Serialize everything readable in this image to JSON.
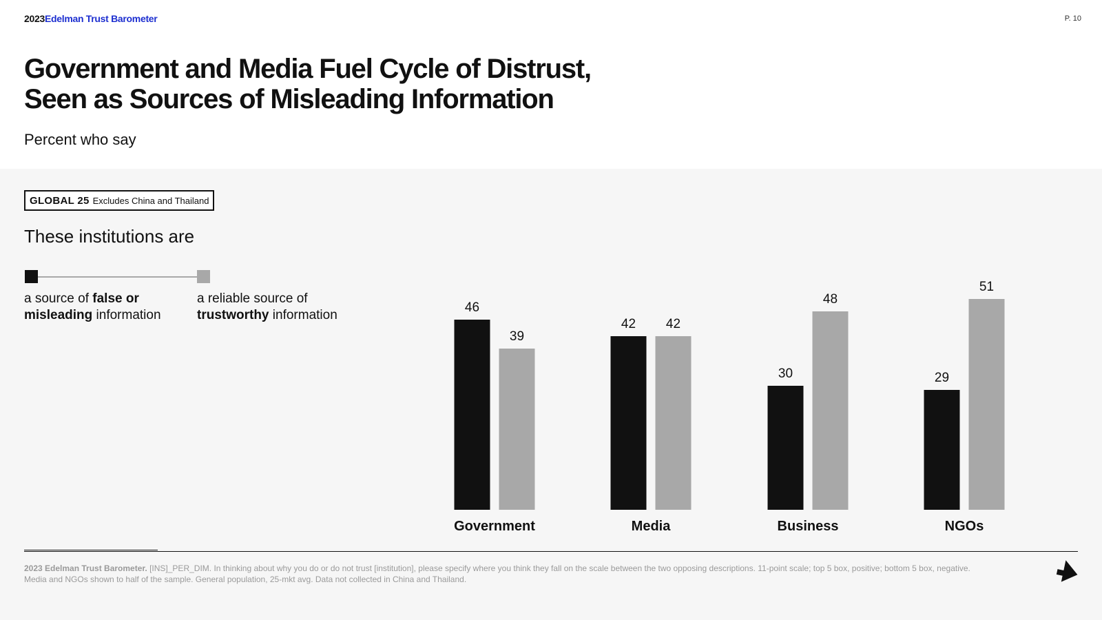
{
  "header": {
    "brand_year": "2023",
    "brand_name": "Edelman Trust Barometer",
    "page_number": "P. 10"
  },
  "title": "Government and Media Fuel Cycle of Distrust,\nSeen as Sources of Misleading Information",
  "subtitle": "Percent who say",
  "badge": {
    "label": "GLOBAL 25",
    "note": "Excludes China and Thailand"
  },
  "institutions_heading": "These institutions are",
  "legend": {
    "left_pre": "a source of ",
    "left_bold": "false or misleading",
    "left_post": " information",
    "right_pre": "a reliable source of ",
    "right_bold": "trustworthy",
    "right_post": " information"
  },
  "colors": {
    "dark_series": "#111111",
    "light_series": "#a8a8a8",
    "brand_blue": "#1d2fd0",
    "panel_background": "#f6f6f6"
  },
  "chart_data": {
    "type": "bar",
    "categories": [
      "Government",
      "Media",
      "Business",
      "NGOs"
    ],
    "series": [
      {
        "values": [
          46,
          42,
          30,
          29
        ],
        "color": "#111111"
      },
      {
        "values": [
          39,
          42,
          48,
          51
        ],
        "color": "#a8a8a8"
      }
    ],
    "ylim": [
      0,
      60
    ],
    "grid": false,
    "data_labels": true
  },
  "footnote": {
    "source": "2023 Edelman Trust Barometer.",
    "text": " [INS]_PER_DIM. In thinking about why you do or do not trust [institution], please specify where you think they fall on the scale between the two opposing descriptions. 11-point scale; top 5 box, positive; bottom 5 box, negative. Media and NGOs shown to half of the sample. General population, 25-mkt avg. Data not collected in China and Thailand."
  },
  "icons": {
    "next": "arrow-down-right-icon"
  }
}
